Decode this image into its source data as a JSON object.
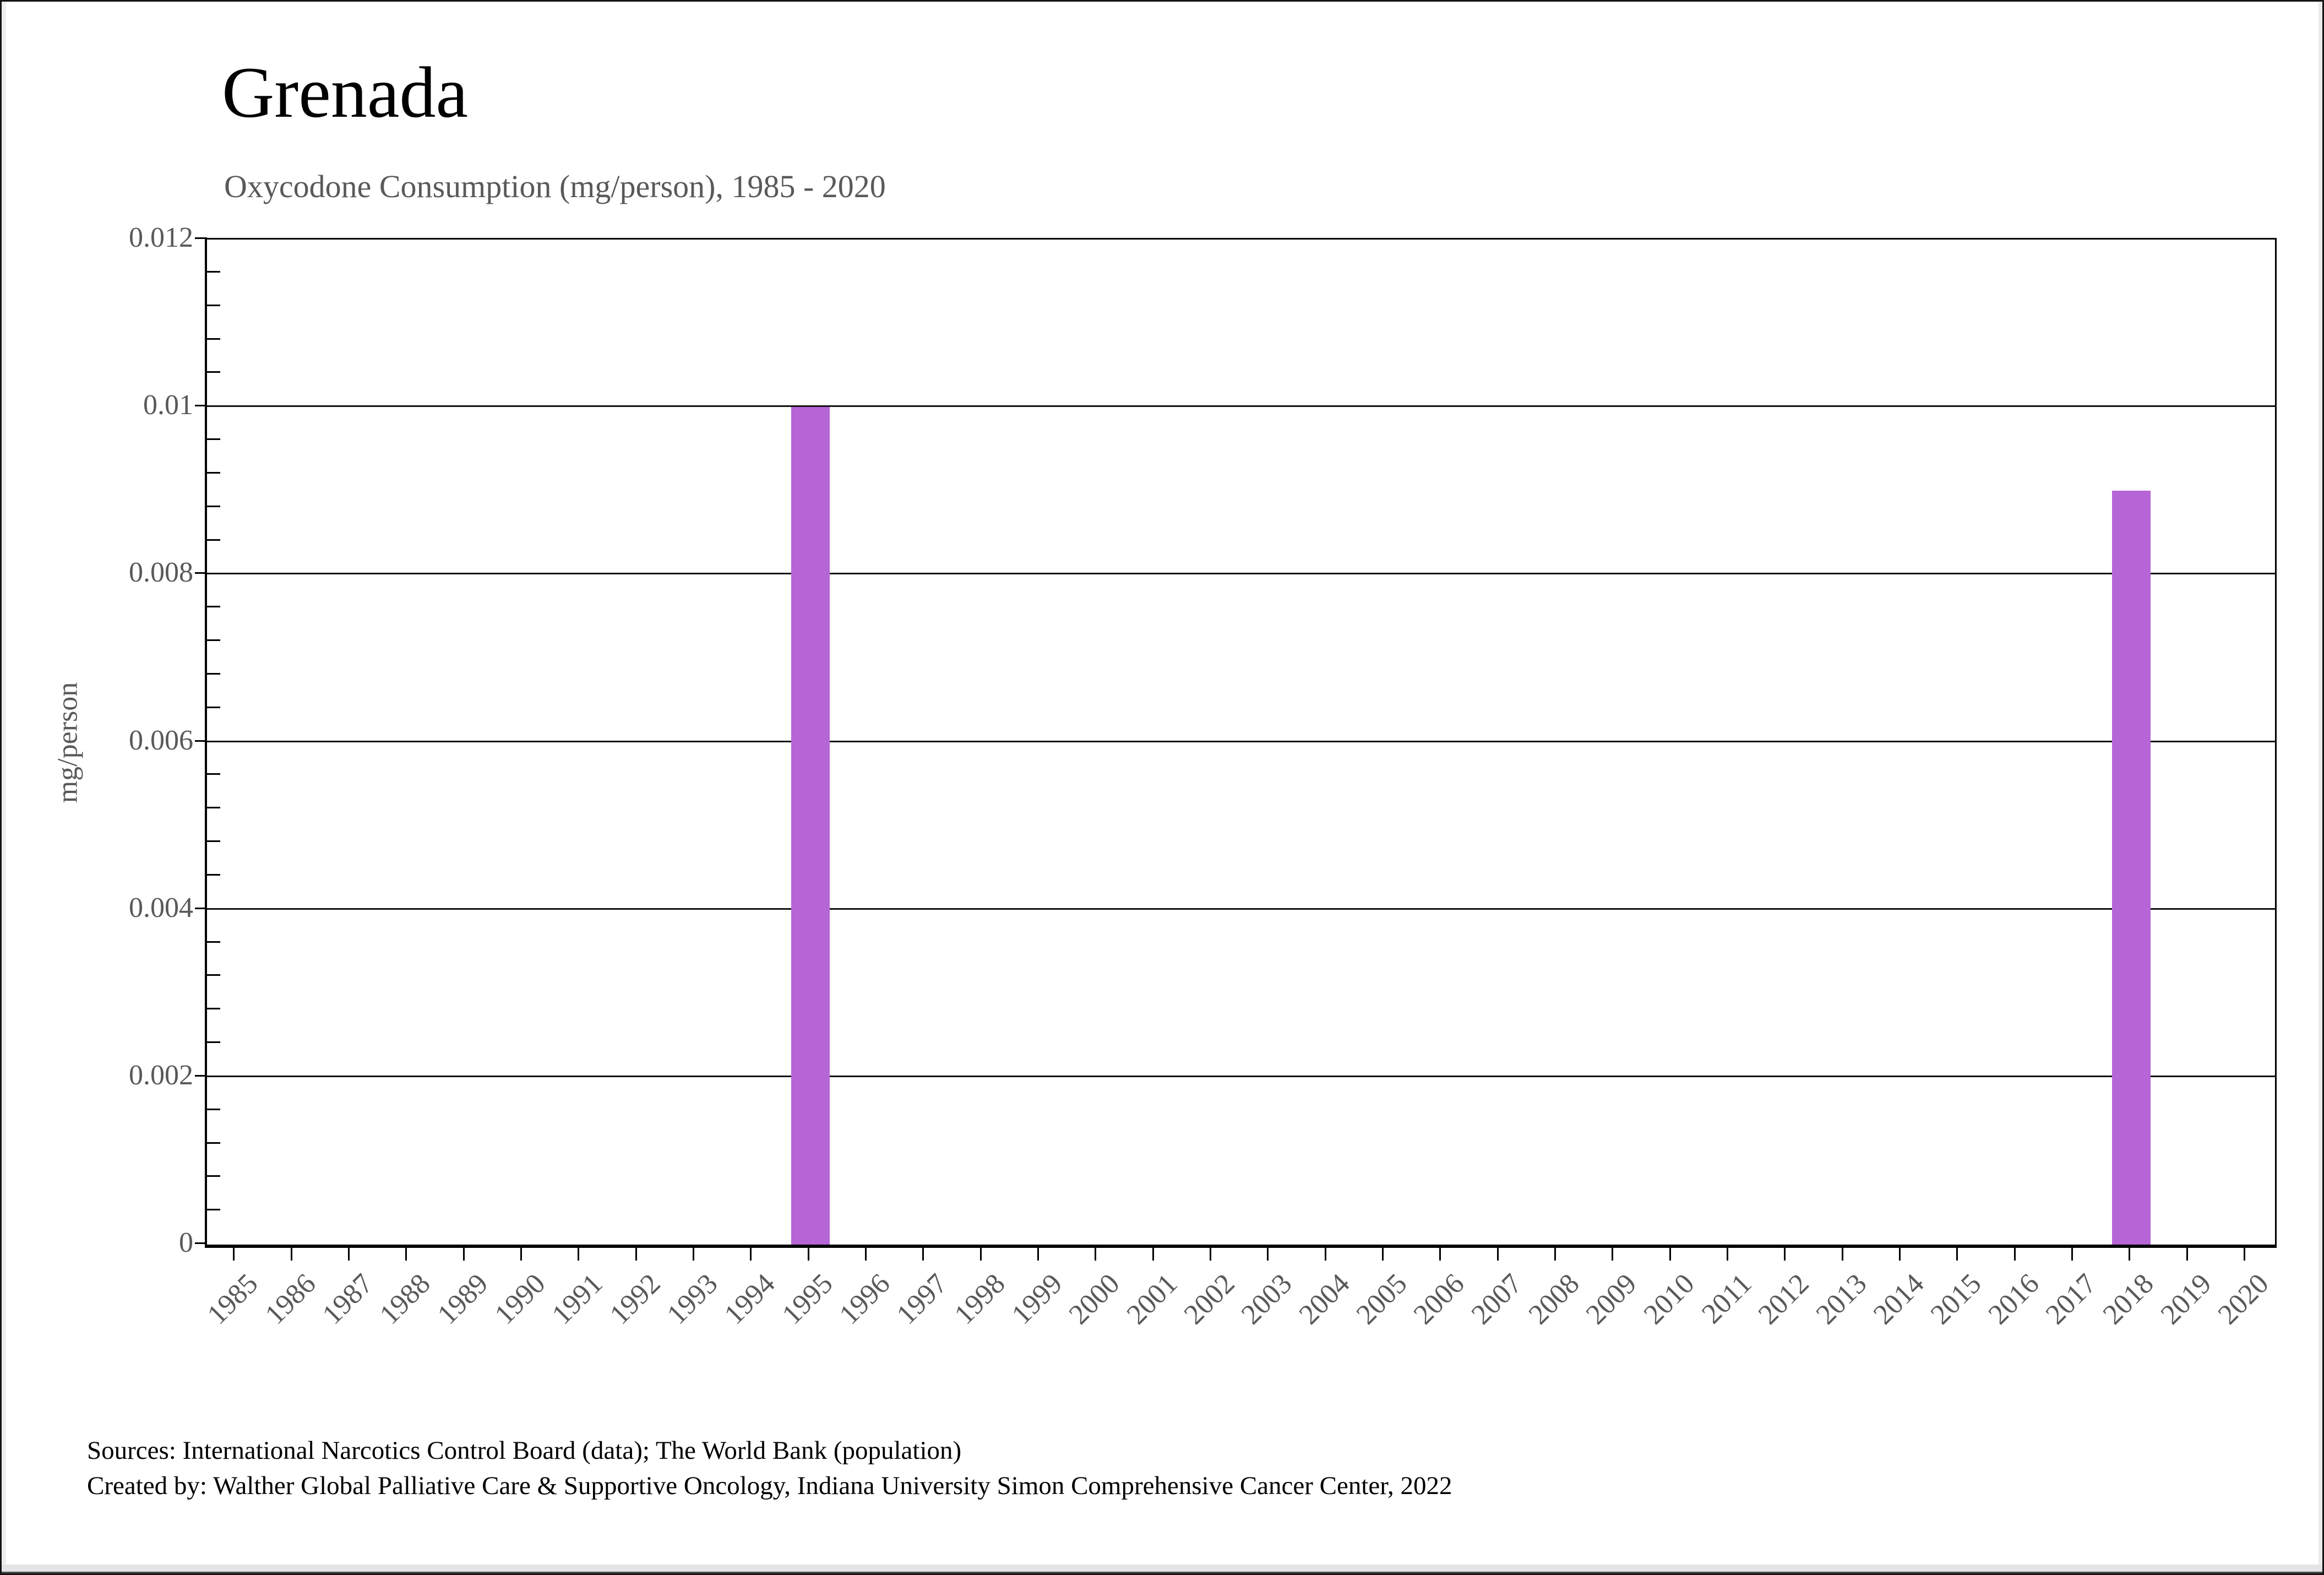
{
  "header": {
    "title": "Grenada",
    "subtitle": "Oxycodone Consumption (mg/person), 1985 - 2020"
  },
  "chart_data": {
    "type": "bar",
    "title": "Grenada",
    "subtitle": "Oxycodone Consumption (mg/person), 1985 - 2020",
    "ylabel": "mg/person",
    "xlabel": "",
    "ylim": [
      0,
      0.012
    ],
    "ytick_step": 0.002,
    "minor_tick_step": 0.0004,
    "grid": true,
    "bar_color": "#b665d6",
    "axis_text_color": "#595959",
    "categories": [
      "1985",
      "1986",
      "1987",
      "1988",
      "1989",
      "1990",
      "1991",
      "1992",
      "1993",
      "1994",
      "1995",
      "1996",
      "1997",
      "1998",
      "1999",
      "2000",
      "2001",
      "2002",
      "2003",
      "2004",
      "2005",
      "2006",
      "2007",
      "2008",
      "2009",
      "2010",
      "2011",
      "2012",
      "2013",
      "2014",
      "2015",
      "2016",
      "2017",
      "2018",
      "2019",
      "2020"
    ],
    "values": [
      0,
      0,
      0,
      0,
      0,
      0,
      0,
      0,
      0,
      0,
      0.01,
      0,
      0,
      0,
      0,
      0,
      0,
      0,
      0,
      0,
      0,
      0,
      0,
      0,
      0,
      0,
      0,
      0,
      0,
      0,
      0,
      0,
      0,
      0.009,
      0,
      0
    ],
    "ytick_labels": [
      "0",
      "0.002",
      "0.004",
      "0.006",
      "0.008",
      "0.01",
      "0.012"
    ]
  },
  "footer": {
    "sources_line1": "Sources: International Narcotics Control Board (data); The World Bank (population)",
    "sources_line2": "Created by: Walther Global Palliative Care & Supportive Oncology, Indiana University Simon Comprehensive Cancer Center, 2022"
  }
}
